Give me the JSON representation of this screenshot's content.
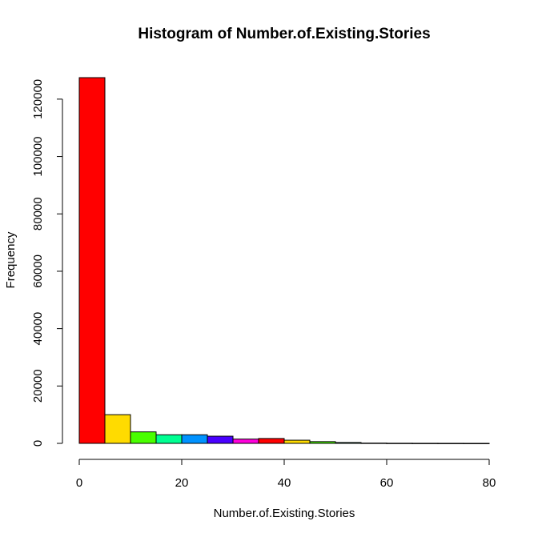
{
  "chart_data": {
    "type": "bar",
    "title": "Histogram of Number.of.Existing.Stories",
    "xlabel": "Number.of.Existing.Stories",
    "ylabel": "Frequency",
    "xlim": [
      0,
      80
    ],
    "ylim": [
      0,
      127500
    ],
    "x_ticks": [
      0,
      20,
      40,
      60,
      80
    ],
    "y_ticks": [
      0,
      20000,
      40000,
      60000,
      80000,
      100000,
      120000
    ],
    "bin_width": 5,
    "bins": [
      {
        "start": 0,
        "end": 5,
        "value": 127500,
        "color": "#FF0000"
      },
      {
        "start": 5,
        "end": 10,
        "value": 10000,
        "color": "#FFDB00"
      },
      {
        "start": 10,
        "end": 15,
        "value": 4000,
        "color": "#49FF00"
      },
      {
        "start": 15,
        "end": 20,
        "value": 3000,
        "color": "#00FF92"
      },
      {
        "start": 20,
        "end": 25,
        "value": 3000,
        "color": "#0092FF"
      },
      {
        "start": 25,
        "end": 30,
        "value": 2500,
        "color": "#4900FF"
      },
      {
        "start": 30,
        "end": 35,
        "value": 1500,
        "color": "#FF00DB"
      },
      {
        "start": 35,
        "end": 40,
        "value": 1700,
        "color": "#FF0000"
      },
      {
        "start": 40,
        "end": 45,
        "value": 1100,
        "color": "#FFDB00"
      },
      {
        "start": 45,
        "end": 50,
        "value": 600,
        "color": "#49FF00"
      },
      {
        "start": 50,
        "end": 55,
        "value": 300,
        "color": "#00FF92"
      },
      {
        "start": 55,
        "end": 60,
        "value": 100,
        "color": "#0092FF"
      },
      {
        "start": 60,
        "end": 65,
        "value": 50,
        "color": "#4900FF"
      },
      {
        "start": 65,
        "end": 70,
        "value": 30,
        "color": "#FF00DB"
      },
      {
        "start": 70,
        "end": 75,
        "value": 20,
        "color": "#FF0000"
      },
      {
        "start": 75,
        "end": 80,
        "value": 10,
        "color": "#FFDB00"
      }
    ],
    "grid": false,
    "legend": "none"
  }
}
